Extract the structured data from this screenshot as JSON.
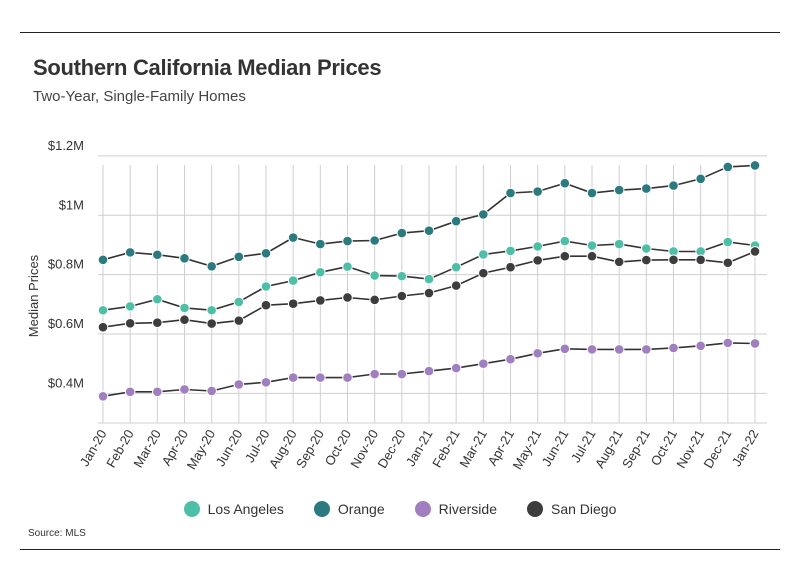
{
  "header": {
    "title": "Southern California Median Prices",
    "subtitle": "Two-Year, Single-Family Homes"
  },
  "footer": {
    "source": "Source:  MLS"
  },
  "chart_data": {
    "type": "line",
    "title": "Southern California Median Prices",
    "subtitle": "Two-Year, Single-Family Homes",
    "xlabel": "",
    "ylabel": "Median Prices",
    "ylim": [
      300000,
      1220000
    ],
    "yticks": [
      400000,
      600000,
      800000,
      1000000,
      1200000
    ],
    "ytick_labels": [
      "$0.4M",
      "$0.6M",
      "$0.8M",
      "$1M",
      "$1.2M"
    ],
    "grid": true,
    "legend_position": "bottom",
    "categories": [
      "Jan-20",
      "Feb-20",
      "Mar-20",
      "Apr-20",
      "May-20",
      "Jun-20",
      "Jul-20",
      "Aug-20",
      "Sep-20",
      "Oct-20",
      "Nov-20",
      "Dec-20",
      "Jan-21",
      "Feb-21",
      "Mar-21",
      "Apr-21",
      "May-21",
      "Jun-21",
      "Jul-21",
      "Aug-21",
      "Sep-21",
      "Oct-21",
      "Nov-21",
      "Dec-21",
      "Jan-22"
    ],
    "series": [
      {
        "name": "Los Angeles",
        "color": "#4dbfa8",
        "values": [
          680000,
          693000,
          717000,
          688000,
          680000,
          708000,
          760000,
          780000,
          808000,
          827000,
          797000,
          795000,
          785000,
          825000,
          868000,
          880000,
          895000,
          913000,
          898000,
          903000,
          888000,
          878000,
          878000,
          910000,
          898000
        ]
      },
      {
        "name": "Orange",
        "color": "#2a7a80",
        "values": [
          850000,
          875000,
          867000,
          855000,
          828000,
          860000,
          872000,
          925000,
          903000,
          913000,
          915000,
          940000,
          948000,
          980000,
          1003000,
          1075000,
          1080000,
          1108000,
          1075000,
          1085000,
          1090000,
          1100000,
          1123000,
          1163000,
          1168000
        ]
      },
      {
        "name": "Riverside",
        "color": "#a07ec0",
        "values": [
          390000,
          405000,
          405000,
          413000,
          408000,
          430000,
          437000,
          453000,
          453000,
          453000,
          465000,
          465000,
          475000,
          485000,
          500000,
          515000,
          535000,
          550000,
          548000,
          548000,
          548000,
          553000,
          560000,
          570000,
          568000
        ]
      },
      {
        "name": "San Diego",
        "color": "#3d3d3d",
        "values": [
          623000,
          636000,
          638000,
          648000,
          635000,
          645000,
          697000,
          702000,
          713000,
          723000,
          715000,
          728000,
          738000,
          763000,
          805000,
          825000,
          848000,
          862000,
          862000,
          843000,
          849000,
          850000,
          850000,
          840000,
          878000
        ]
      }
    ]
  }
}
